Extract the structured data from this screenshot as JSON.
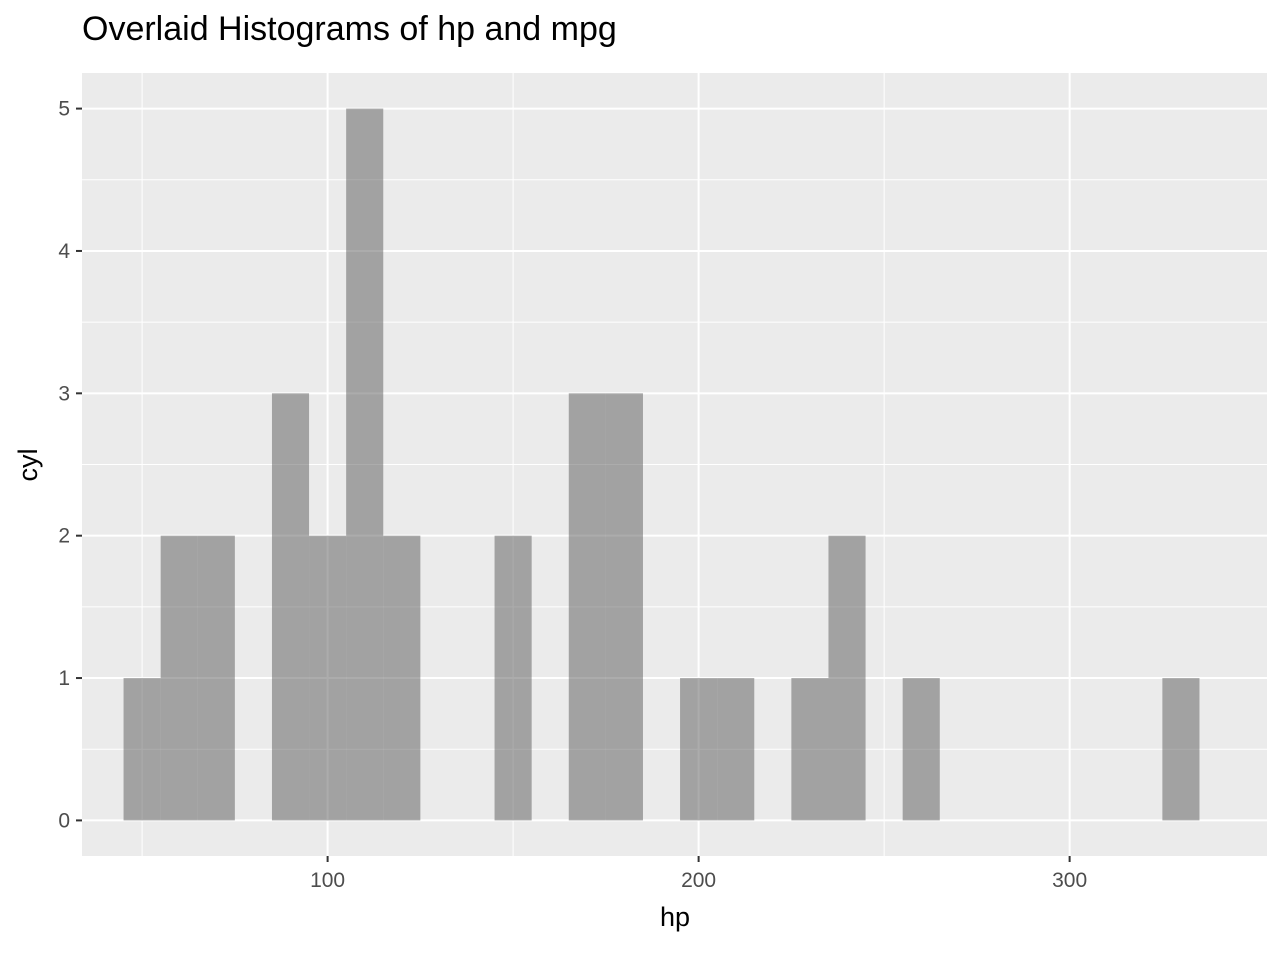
{
  "chart_data": {
    "type": "bar",
    "title": "Overlaid Histograms of hp and mpg",
    "xlabel": "hp",
    "ylabel": "cyl",
    "xlim": [
      33.8,
      353.2
    ],
    "ylim": [
      -0.25,
      5.25
    ],
    "x_ticks": [
      100,
      200,
      300
    ],
    "y_ticks": [
      0,
      1,
      2,
      3,
      4,
      5
    ],
    "bin_width": 10,
    "bins": [
      {
        "x": 50,
        "value": 1
      },
      {
        "x": 60,
        "value": 2
      },
      {
        "x": 70,
        "value": 2
      },
      {
        "x": 90,
        "value": 3
      },
      {
        "x": 100,
        "value": 2
      },
      {
        "x": 110,
        "value": 5
      },
      {
        "x": 120,
        "value": 2
      },
      {
        "x": 150,
        "value": 2
      },
      {
        "x": 170,
        "value": 3
      },
      {
        "x": 180,
        "value": 3
      },
      {
        "x": 200,
        "value": 1
      },
      {
        "x": 210,
        "value": 1
      },
      {
        "x": 230,
        "value": 1
      },
      {
        "x": 240,
        "value": 2
      },
      {
        "x": 260,
        "value": 1
      },
      {
        "x": 330,
        "value": 1
      }
    ],
    "grid": true,
    "bar_color": "#595959",
    "bar_opacity": 0.5,
    "panel_background": "#ebebeb"
  }
}
